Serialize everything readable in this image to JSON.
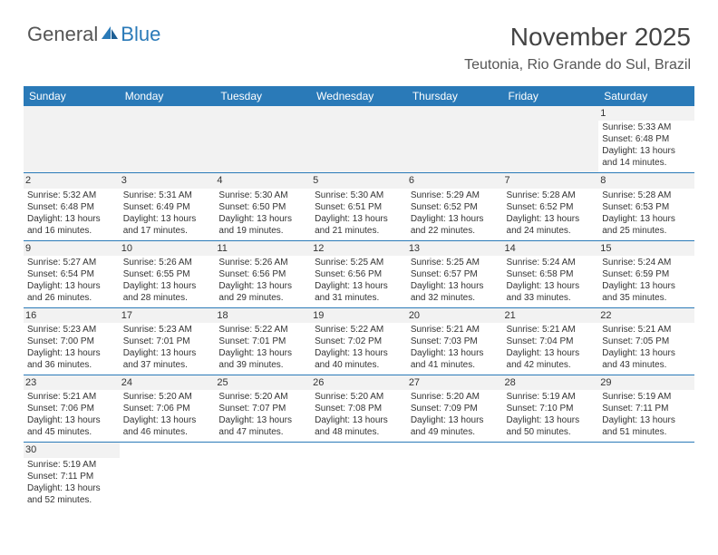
{
  "logo": {
    "part1": "General",
    "part2": "Blue"
  },
  "title": "November 2025",
  "location": "Teutonia, Rio Grande do Sul, Brazil",
  "colors": {
    "headerBlue": "#2a7ab8",
    "textGrey": "#444444"
  },
  "dayHeaders": [
    "Sunday",
    "Monday",
    "Tuesday",
    "Wednesday",
    "Thursday",
    "Friday",
    "Saturday"
  ],
  "weeks": [
    [
      null,
      null,
      null,
      null,
      null,
      null,
      {
        "n": "1",
        "sr": "Sunrise: 5:33 AM",
        "ss": "Sunset: 6:48 PM",
        "d1": "Daylight: 13 hours",
        "d2": "and 14 minutes."
      }
    ],
    [
      {
        "n": "2",
        "sr": "Sunrise: 5:32 AM",
        "ss": "Sunset: 6:48 PM",
        "d1": "Daylight: 13 hours",
        "d2": "and 16 minutes."
      },
      {
        "n": "3",
        "sr": "Sunrise: 5:31 AM",
        "ss": "Sunset: 6:49 PM",
        "d1": "Daylight: 13 hours",
        "d2": "and 17 minutes."
      },
      {
        "n": "4",
        "sr": "Sunrise: 5:30 AM",
        "ss": "Sunset: 6:50 PM",
        "d1": "Daylight: 13 hours",
        "d2": "and 19 minutes."
      },
      {
        "n": "5",
        "sr": "Sunrise: 5:30 AM",
        "ss": "Sunset: 6:51 PM",
        "d1": "Daylight: 13 hours",
        "d2": "and 21 minutes."
      },
      {
        "n": "6",
        "sr": "Sunrise: 5:29 AM",
        "ss": "Sunset: 6:52 PM",
        "d1": "Daylight: 13 hours",
        "d2": "and 22 minutes."
      },
      {
        "n": "7",
        "sr": "Sunrise: 5:28 AM",
        "ss": "Sunset: 6:52 PM",
        "d1": "Daylight: 13 hours",
        "d2": "and 24 minutes."
      },
      {
        "n": "8",
        "sr": "Sunrise: 5:28 AM",
        "ss": "Sunset: 6:53 PM",
        "d1": "Daylight: 13 hours",
        "d2": "and 25 minutes."
      }
    ],
    [
      {
        "n": "9",
        "sr": "Sunrise: 5:27 AM",
        "ss": "Sunset: 6:54 PM",
        "d1": "Daylight: 13 hours",
        "d2": "and 26 minutes."
      },
      {
        "n": "10",
        "sr": "Sunrise: 5:26 AM",
        "ss": "Sunset: 6:55 PM",
        "d1": "Daylight: 13 hours",
        "d2": "and 28 minutes."
      },
      {
        "n": "11",
        "sr": "Sunrise: 5:26 AM",
        "ss": "Sunset: 6:56 PM",
        "d1": "Daylight: 13 hours",
        "d2": "and 29 minutes."
      },
      {
        "n": "12",
        "sr": "Sunrise: 5:25 AM",
        "ss": "Sunset: 6:56 PM",
        "d1": "Daylight: 13 hours",
        "d2": "and 31 minutes."
      },
      {
        "n": "13",
        "sr": "Sunrise: 5:25 AM",
        "ss": "Sunset: 6:57 PM",
        "d1": "Daylight: 13 hours",
        "d2": "and 32 minutes."
      },
      {
        "n": "14",
        "sr": "Sunrise: 5:24 AM",
        "ss": "Sunset: 6:58 PM",
        "d1": "Daylight: 13 hours",
        "d2": "and 33 minutes."
      },
      {
        "n": "15",
        "sr": "Sunrise: 5:24 AM",
        "ss": "Sunset: 6:59 PM",
        "d1": "Daylight: 13 hours",
        "d2": "and 35 minutes."
      }
    ],
    [
      {
        "n": "16",
        "sr": "Sunrise: 5:23 AM",
        "ss": "Sunset: 7:00 PM",
        "d1": "Daylight: 13 hours",
        "d2": "and 36 minutes."
      },
      {
        "n": "17",
        "sr": "Sunrise: 5:23 AM",
        "ss": "Sunset: 7:01 PM",
        "d1": "Daylight: 13 hours",
        "d2": "and 37 minutes."
      },
      {
        "n": "18",
        "sr": "Sunrise: 5:22 AM",
        "ss": "Sunset: 7:01 PM",
        "d1": "Daylight: 13 hours",
        "d2": "and 39 minutes."
      },
      {
        "n": "19",
        "sr": "Sunrise: 5:22 AM",
        "ss": "Sunset: 7:02 PM",
        "d1": "Daylight: 13 hours",
        "d2": "and 40 minutes."
      },
      {
        "n": "20",
        "sr": "Sunrise: 5:21 AM",
        "ss": "Sunset: 7:03 PM",
        "d1": "Daylight: 13 hours",
        "d2": "and 41 minutes."
      },
      {
        "n": "21",
        "sr": "Sunrise: 5:21 AM",
        "ss": "Sunset: 7:04 PM",
        "d1": "Daylight: 13 hours",
        "d2": "and 42 minutes."
      },
      {
        "n": "22",
        "sr": "Sunrise: 5:21 AM",
        "ss": "Sunset: 7:05 PM",
        "d1": "Daylight: 13 hours",
        "d2": "and 43 minutes."
      }
    ],
    [
      {
        "n": "23",
        "sr": "Sunrise: 5:21 AM",
        "ss": "Sunset: 7:06 PM",
        "d1": "Daylight: 13 hours",
        "d2": "and 45 minutes."
      },
      {
        "n": "24",
        "sr": "Sunrise: 5:20 AM",
        "ss": "Sunset: 7:06 PM",
        "d1": "Daylight: 13 hours",
        "d2": "and 46 minutes."
      },
      {
        "n": "25",
        "sr": "Sunrise: 5:20 AM",
        "ss": "Sunset: 7:07 PM",
        "d1": "Daylight: 13 hours",
        "d2": "and 47 minutes."
      },
      {
        "n": "26",
        "sr": "Sunrise: 5:20 AM",
        "ss": "Sunset: 7:08 PM",
        "d1": "Daylight: 13 hours",
        "d2": "and 48 minutes."
      },
      {
        "n": "27",
        "sr": "Sunrise: 5:20 AM",
        "ss": "Sunset: 7:09 PM",
        "d1": "Daylight: 13 hours",
        "d2": "and 49 minutes."
      },
      {
        "n": "28",
        "sr": "Sunrise: 5:19 AM",
        "ss": "Sunset: 7:10 PM",
        "d1": "Daylight: 13 hours",
        "d2": "and 50 minutes."
      },
      {
        "n": "29",
        "sr": "Sunrise: 5:19 AM",
        "ss": "Sunset: 7:11 PM",
        "d1": "Daylight: 13 hours",
        "d2": "and 51 minutes."
      }
    ],
    [
      {
        "n": "30",
        "sr": "Sunrise: 5:19 AM",
        "ss": "Sunset: 7:11 PM",
        "d1": "Daylight: 13 hours",
        "d2": "and 52 minutes."
      },
      null,
      null,
      null,
      null,
      null,
      null
    ]
  ]
}
